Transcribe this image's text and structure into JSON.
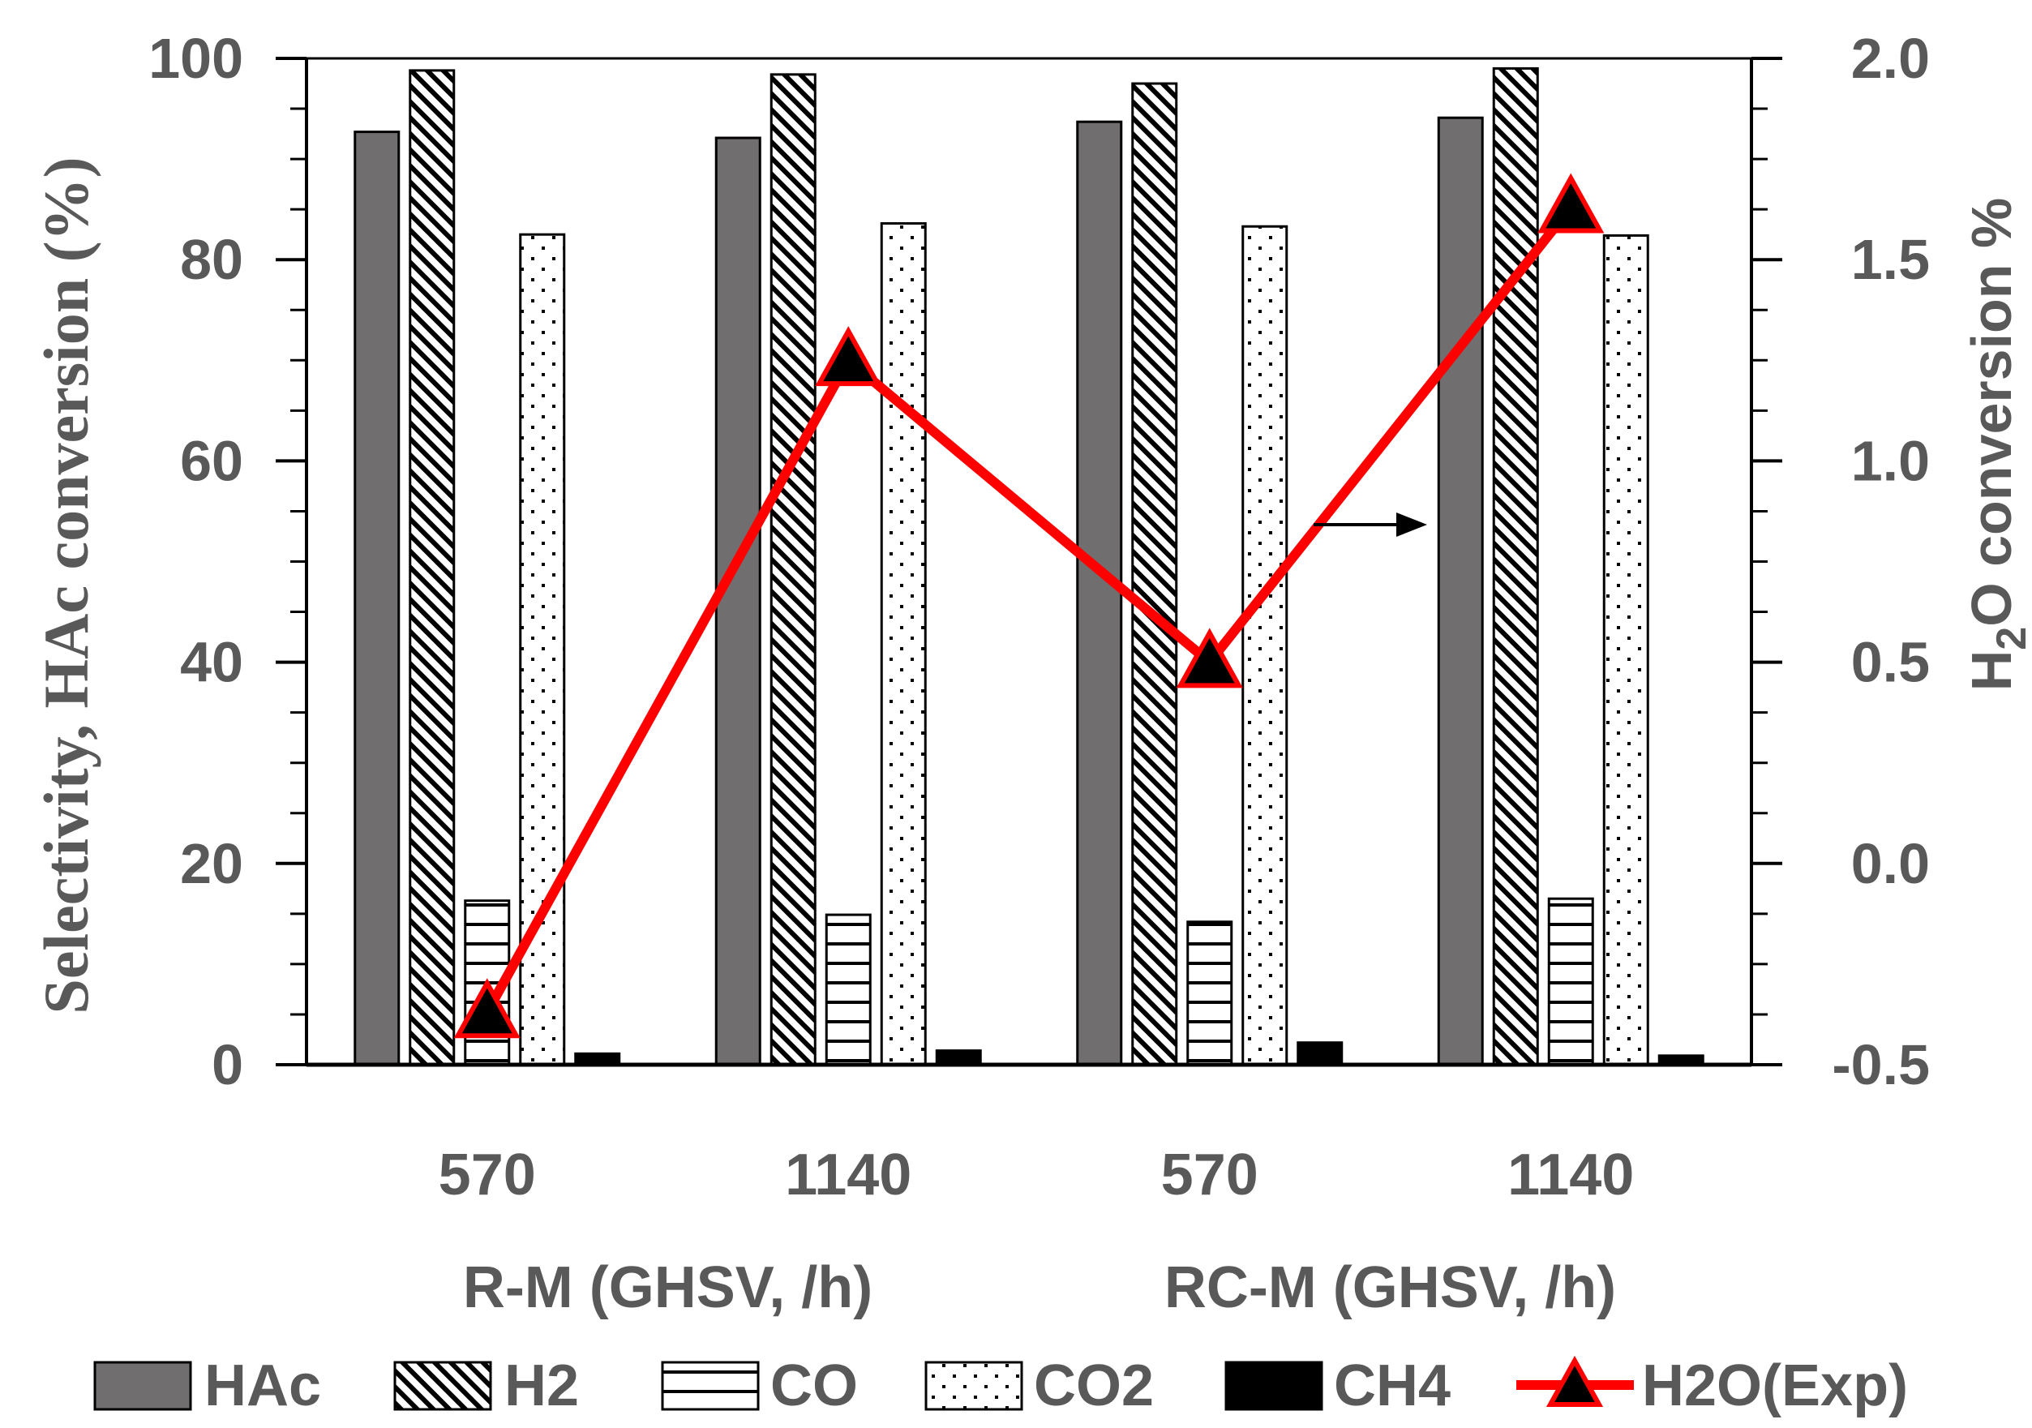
{
  "chart_data": {
    "type": "bar",
    "categories": [
      "570",
      "1140",
      "570",
      "1140"
    ],
    "groups": [
      {
        "label": "R-M (GHSV, /h)",
        "categories": [
          0,
          1
        ]
      },
      {
        "label": "RC-M (GHSV, /h)",
        "categories": [
          2,
          3
        ]
      }
    ],
    "series": [
      {
        "name": "HAc",
        "style": "solid-gray",
        "color": "#706e6e",
        "values": [
          92.7,
          92.1,
          93.7,
          94.1
        ]
      },
      {
        "name": "H2",
        "style": "diagonal-hatch",
        "color": "#000000",
        "values": [
          98.8,
          98.4,
          97.5,
          99.0
        ]
      },
      {
        "name": "CO",
        "style": "horizontal-lines",
        "color": "#000000",
        "values": [
          16.3,
          14.9,
          14.2,
          16.5
        ]
      },
      {
        "name": "CO2",
        "style": "dots",
        "color": "#000000",
        "values": [
          82.5,
          83.6,
          83.3,
          82.4
        ]
      },
      {
        "name": "CH4",
        "style": "solid-black",
        "color": "#000000",
        "values": [
          1.1,
          1.4,
          2.2,
          0.9
        ]
      }
    ],
    "line_series": [
      {
        "name": "H2O(Exp)",
        "axis": "right",
        "color": "#ff0000",
        "marker": "triangle",
        "values": [
          -0.37,
          1.25,
          0.5,
          1.63
        ]
      }
    ],
    "ylabel": "Selectivity, HAc conversion (%)",
    "ylim": [
      0,
      100
    ],
    "yticks": [
      "0",
      "20",
      "40",
      "60",
      "80",
      "100"
    ],
    "y2label_parts": [
      "H",
      "2",
      "O conversion %"
    ],
    "y2lim": [
      -0.5,
      2.0
    ],
    "y2ticks": [
      "-0.5",
      "0.0",
      "0.5",
      "1.0",
      "1.5",
      "2.0"
    ],
    "legend": [
      "HAc",
      "H2",
      "CO",
      "CO2",
      "CH4",
      "H2O(Exp)"
    ],
    "legend_position": "bottom",
    "annotation": "arrow pointing right (line uses right axis)"
  }
}
